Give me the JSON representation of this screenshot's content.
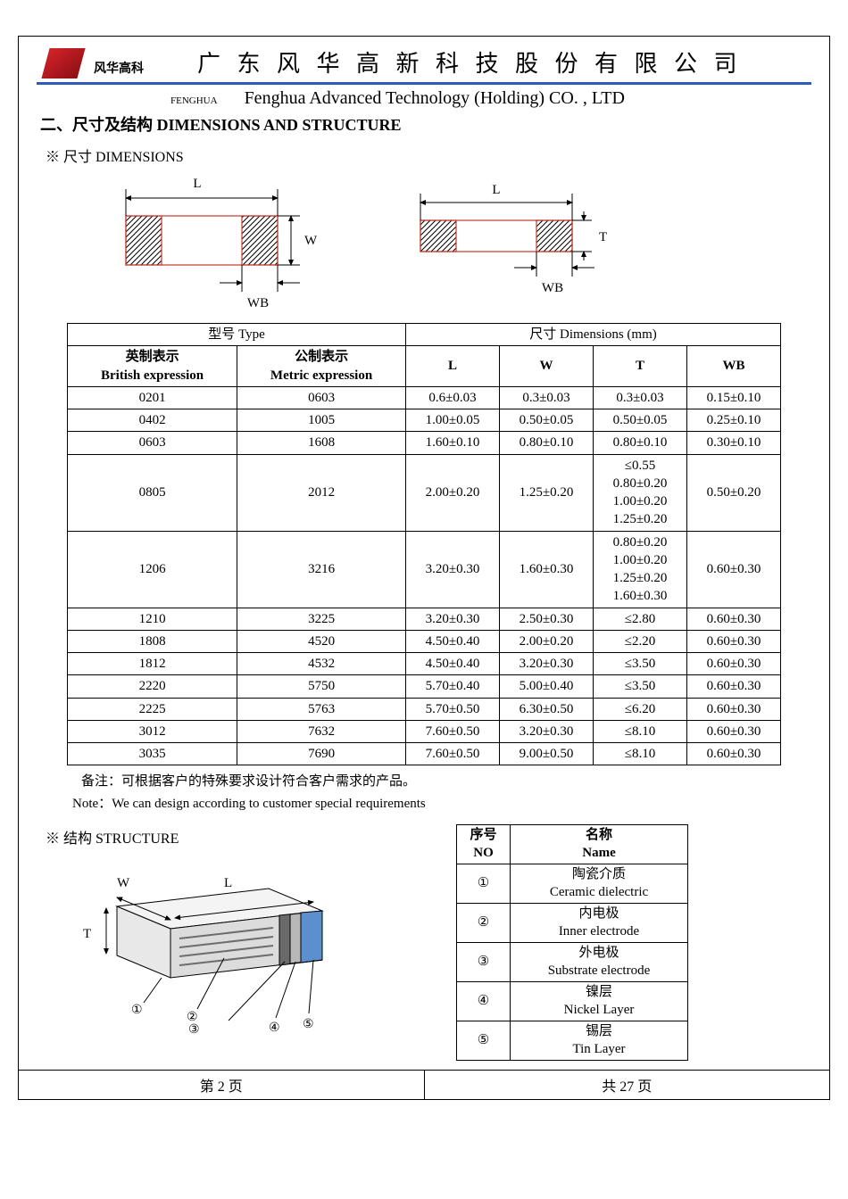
{
  "header": {
    "brand_cn": "风华高科",
    "company_cn": "广 东 风 华 高 新 科 技 股 份 有 限 公 司",
    "fenghua_en": "FENGHUA",
    "company_en": "Fenghua Advanced Technology (Holding) CO. , LTD",
    "line_color": "#2e5bb8",
    "logo_color": "#d4232a"
  },
  "section": {
    "title": "二、尺寸及结构   DIMENSIONS AND STRUCTURE",
    "dim_sub": "※ 尺寸 DIMENSIONS",
    "struct_sub": "※ 结构 STRUCTURE"
  },
  "diagram_labels": {
    "L": "L",
    "W": "W",
    "T": "T",
    "WB": "WB"
  },
  "dim_table": {
    "head_type": "型号 Type",
    "head_dim": "尺寸     Dimensions     (mm)",
    "sub_brit_cn": "英制表示",
    "sub_brit_en": "British expression",
    "sub_met_cn": "公制表示",
    "sub_met_en": "Metric expression",
    "col_L": "L",
    "col_W": "W",
    "col_T": "T",
    "col_WB": "WB",
    "rows": [
      {
        "brit": "0201",
        "met": "0603",
        "L": "0.6±0.03",
        "W": "0.3±0.03",
        "T": "0.3±0.03",
        "WB": "0.15±0.10"
      },
      {
        "brit": "0402",
        "met": "1005",
        "L": "1.00±0.05",
        "W": "0.50±0.05",
        "T": "0.50±0.05",
        "WB": "0.25±0.10"
      },
      {
        "brit": "0603",
        "met": "1608",
        "L": "1.60±0.10",
        "W": "0.80±0.10",
        "T": "0.80±0.10",
        "WB": "0.30±0.10"
      },
      {
        "brit": "0805",
        "met": "2012",
        "L": "2.00±0.20",
        "W": "1.25±0.20",
        "T": "≤0.55\n0.80±0.20\n1.00±0.20\n1.25±0.20",
        "WB": "0.50±0.20"
      },
      {
        "brit": "1206",
        "met": "3216",
        "L": "3.20±0.30",
        "W": "1.60±0.30",
        "T": "0.80±0.20\n1.00±0.20\n1.25±0.20\n1.60±0.30",
        "WB": "0.60±0.30"
      },
      {
        "brit": "1210",
        "met": "3225",
        "L": "3.20±0.30",
        "W": "2.50±0.30",
        "T": "≤2.80",
        "WB": "0.60±0.30"
      },
      {
        "brit": "1808",
        "met": "4520",
        "L": "4.50±0.40",
        "W": "2.00±0.20",
        "T": "≤2.20",
        "WB": "0.60±0.30"
      },
      {
        "brit": "1812",
        "met": "4532",
        "L": "4.50±0.40",
        "W": "3.20±0.30",
        "T": "≤3.50",
        "WB": "0.60±0.30"
      },
      {
        "brit": "2220",
        "met": "5750",
        "L": "5.70±0.40",
        "W": "5.00±0.40",
        "T": "≤3.50",
        "WB": "0.60±0.30"
      },
      {
        "brit": "2225",
        "met": "5763",
        "L": "5.70±0.50",
        "W": "6.30±0.50",
        "T": "≤6.20",
        "WB": "0.60±0.30"
      },
      {
        "brit": "3012",
        "met": "7632",
        "L": "7.60±0.50",
        "W": "3.20±0.30",
        "T": "≤8.10",
        "WB": "0.60±0.30"
      },
      {
        "brit": "3035",
        "met": "7690",
        "L": "7.60±0.50",
        "W": "9.00±0.50",
        "T": "≤8.10",
        "WB": "0.60±0.30"
      }
    ]
  },
  "notes": {
    "cn": "备注：可根据客户的特殊要求设计符合客户需求的产品。",
    "en": "Note：We can design according to customer special requirements"
  },
  "struct_table": {
    "head_no_cn": "序号",
    "head_no_en": "NO",
    "head_name_cn": "名称",
    "head_name_en": "Name",
    "rows": [
      {
        "no": "①",
        "name_cn": "陶瓷介质",
        "name_en": "Ceramic   dielectric"
      },
      {
        "no": "②",
        "name_cn": "内电极",
        "name_en": "Inner   electrode"
      },
      {
        "no": "③",
        "name_cn": "外电极",
        "name_en": "Substrate   electrode"
      },
      {
        "no": "④",
        "name_cn": "镍层",
        "name_en": "Nickel Layer"
      },
      {
        "no": "⑤",
        "name_cn": "锡层",
        "name_en": "Tin Layer"
      }
    ]
  },
  "struct_labels": {
    "W": "W",
    "L": "L",
    "T": "T",
    "n1": "①",
    "n2": "②",
    "n3": "③",
    "n4": "④",
    "n5": "⑤"
  },
  "footer": {
    "page_label_left": "第   2   页",
    "page_label_right": "共  27  页"
  },
  "colors": {
    "text": "#000000",
    "border": "#000000",
    "hatch": "#c0392b",
    "body_fill": "#f2f2f2",
    "electrode_fill": "#5b8fce",
    "gray_fill": "#bfbfbf"
  }
}
